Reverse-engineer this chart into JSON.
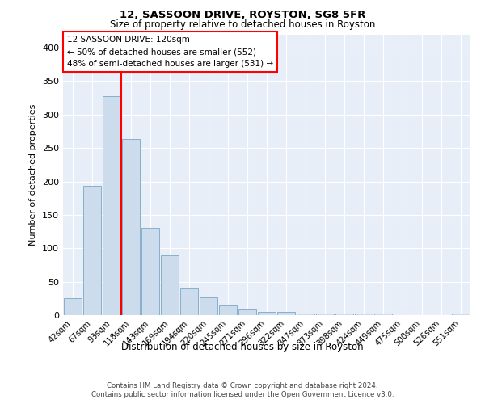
{
  "title": "12, SASSOON DRIVE, ROYSTON, SG8 5FR",
  "subtitle": "Size of property relative to detached houses in Royston",
  "xlabel": "Distribution of detached houses by size in Royston",
  "ylabel": "Number of detached properties",
  "bins": [
    "42sqm",
    "67sqm",
    "93sqm",
    "118sqm",
    "143sqm",
    "169sqm",
    "194sqm",
    "220sqm",
    "245sqm",
    "271sqm",
    "296sqm",
    "322sqm",
    "347sqm",
    "373sqm",
    "398sqm",
    "424sqm",
    "449sqm",
    "475sqm",
    "500sqm",
    "526sqm",
    "551sqm"
  ],
  "bar_heights": [
    25,
    193,
    328,
    264,
    130,
    90,
    40,
    27,
    15,
    9,
    5,
    5,
    3,
    3,
    2,
    2,
    2,
    0,
    0,
    0,
    3
  ],
  "bar_color": "#ccdcec",
  "bar_edge_color": "#7aa8c8",
  "red_line_x": 2.5,
  "annotation_line1": "12 SASSOON DRIVE: 120sqm",
  "annotation_line2": "← 50% of detached houses are smaller (552)",
  "annotation_line3": "48% of semi-detached houses are larger (531) →",
  "footer_line1": "Contains HM Land Registry data © Crown copyright and database right 2024.",
  "footer_line2": "Contains public sector information licensed under the Open Government Licence v3.0.",
  "ylim": [
    0,
    420
  ],
  "bg_color": "#e8eef8",
  "fig_bg": "#ffffff"
}
